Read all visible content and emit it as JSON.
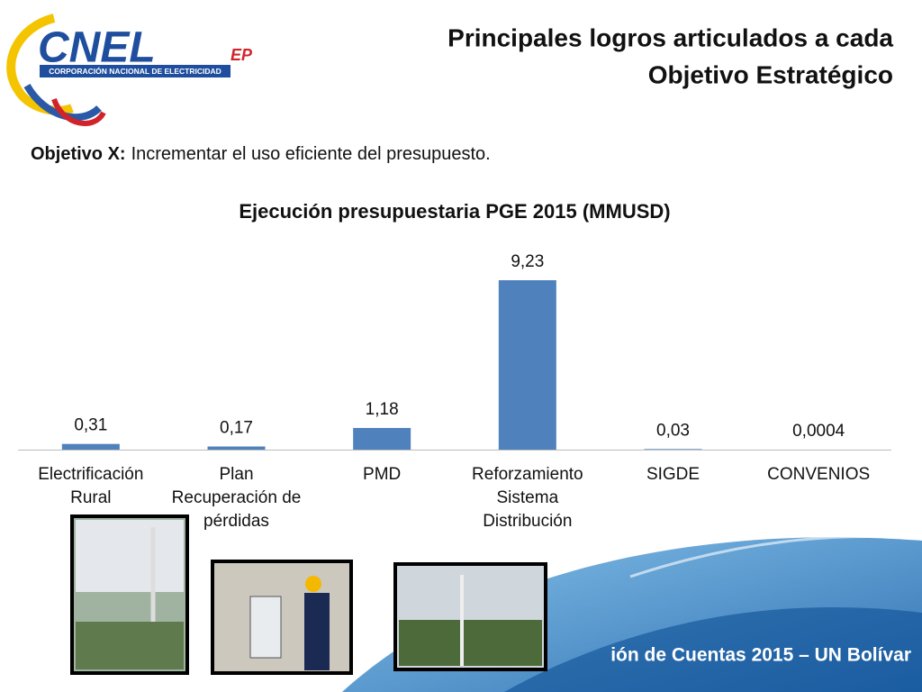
{
  "logo": {
    "name": "CNEL",
    "suffix": "EP",
    "subtitle": "CORPORACIÓN NACIONAL DE ELECTRICIDAD"
  },
  "header": {
    "title_lines": [
      "Principales logros articulados a cada",
      "Objetivo Estratégico"
    ]
  },
  "objective": {
    "label": "Objetivo X:",
    "text": "Incrementar el uso eficiente del presupuesto."
  },
  "footer": "ión de Cuentas 2015 – UN Bolívar",
  "chart_data": {
    "type": "bar",
    "title": "Ejecución presupuestaria PGE 2015 (MMUSD)",
    "categories": [
      "Electrificación Rural",
      "Plan Recuperación de pérdidas",
      "PMD",
      "Reforzamiento Sistema Distribución",
      "SIGDE",
      "CONVENIOS"
    ],
    "values": [
      0.31,
      0.17,
      1.18,
      9.23,
      0.03,
      0.0004
    ],
    "value_labels": [
      "0,31",
      "0,17",
      "1,18",
      "9,23",
      "0,03",
      "0,0004"
    ],
    "color": "#4f81bd"
  }
}
